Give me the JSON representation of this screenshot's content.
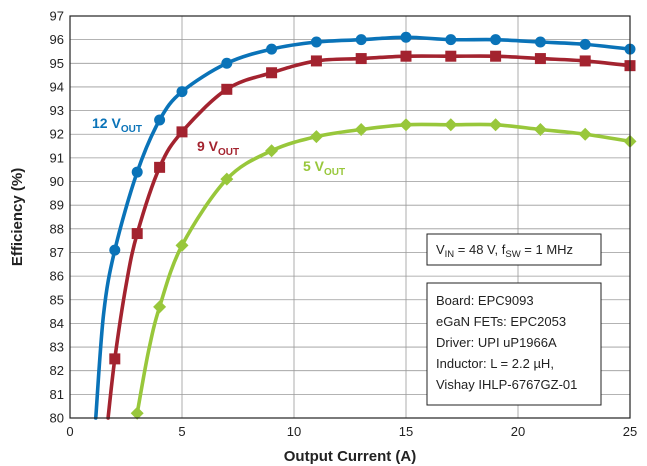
{
  "chart_data": {
    "type": "line",
    "xlabel": "Output Current (A)",
    "ylabel": "Efficiency (%)",
    "xlim": [
      0,
      25
    ],
    "ylim": [
      80,
      97
    ],
    "xticks": [
      0,
      5,
      10,
      15,
      20,
      25
    ],
    "yticks": [
      80,
      81,
      82,
      83,
      84,
      85,
      86,
      87,
      88,
      89,
      90,
      91,
      92,
      93,
      94,
      95,
      96,
      97
    ],
    "grid": true,
    "series": [
      {
        "name": "12 V",
        "name_sub": "OUT",
        "color": "#0a73b8",
        "marker": "circle",
        "markers": [
          [
            2,
            87.1
          ],
          [
            3,
            90.4
          ],
          [
            4,
            92.6
          ],
          [
            5,
            93.8
          ],
          [
            7,
            95.0
          ],
          [
            9,
            95.6
          ],
          [
            11,
            95.9
          ],
          [
            13,
            96.0
          ],
          [
            15,
            96.1
          ],
          [
            17,
            96.0
          ],
          [
            19,
            96.0
          ],
          [
            21,
            95.9
          ],
          [
            23,
            95.8
          ],
          [
            25,
            95.6
          ]
        ],
        "curve": [
          [
            1.15,
            80.0
          ],
          [
            1.5,
            84.4
          ],
          [
            2,
            87.1
          ],
          [
            3,
            90.4
          ],
          [
            4,
            92.6
          ],
          [
            5,
            93.8
          ],
          [
            7,
            95.0
          ],
          [
            9,
            95.6
          ],
          [
            11,
            95.9
          ],
          [
            13,
            96.0
          ],
          [
            15,
            96.1
          ],
          [
            17,
            96.0
          ],
          [
            19,
            96.0
          ],
          [
            21,
            95.9
          ],
          [
            23,
            95.8
          ],
          [
            25,
            95.6
          ]
        ]
      },
      {
        "name": "9 V",
        "name_sub": "OUT",
        "color": "#a3232f",
        "marker": "square",
        "markers": [
          [
            2,
            82.5
          ],
          [
            3,
            87.8
          ],
          [
            4,
            90.6
          ],
          [
            5,
            92.1
          ],
          [
            7,
            93.9
          ],
          [
            9,
            94.6
          ],
          [
            11,
            95.1
          ],
          [
            13,
            95.2
          ],
          [
            15,
            95.3
          ],
          [
            17,
            95.3
          ],
          [
            19,
            95.3
          ],
          [
            21,
            95.2
          ],
          [
            23,
            95.1
          ],
          [
            25,
            94.9
          ]
        ],
        "curve": [
          [
            1.7,
            80.0
          ],
          [
            2,
            82.5
          ],
          [
            2.5,
            85.6
          ],
          [
            3,
            87.8
          ],
          [
            4,
            90.6
          ],
          [
            5,
            92.1
          ],
          [
            7,
            93.9
          ],
          [
            9,
            94.6
          ],
          [
            11,
            95.1
          ],
          [
            13,
            95.2
          ],
          [
            15,
            95.3
          ],
          [
            17,
            95.3
          ],
          [
            19,
            95.3
          ],
          [
            21,
            95.2
          ],
          [
            23,
            95.1
          ],
          [
            25,
            94.9
          ]
        ]
      },
      {
        "name": "5 V",
        "name_sub": "OUT",
        "color": "#98c73b",
        "marker": "diamond",
        "markers": [
          [
            3,
            80.2
          ],
          [
            4,
            84.7
          ],
          [
            5,
            87.3
          ],
          [
            7,
            90.1
          ],
          [
            9,
            91.3
          ],
          [
            11,
            91.9
          ],
          [
            13,
            92.2
          ],
          [
            15,
            92.4
          ],
          [
            17,
            92.4
          ],
          [
            19,
            92.4
          ],
          [
            21,
            92.2
          ],
          [
            23,
            92.0
          ],
          [
            25,
            91.7
          ]
        ],
        "curve": [
          [
            3,
            80.2
          ],
          [
            3.5,
            82.8
          ],
          [
            4,
            84.7
          ],
          [
            5,
            87.3
          ],
          [
            7,
            90.1
          ],
          [
            9,
            91.3
          ],
          [
            11,
            91.9
          ],
          [
            13,
            92.2
          ],
          [
            15,
            92.4
          ],
          [
            17,
            92.4
          ],
          [
            19,
            92.4
          ],
          [
            21,
            92.2
          ],
          [
            23,
            92.0
          ],
          [
            25,
            91.7
          ]
        ]
      }
    ],
    "condition_box": {
      "parts": [
        {
          "t": "V",
          "sub": false
        },
        {
          "t": "IN",
          "sub": true
        },
        {
          "t": " = 48 V, f",
          "sub": false
        },
        {
          "t": "SW",
          "sub": true
        },
        {
          "t": " = 1 MHz",
          "sub": false
        }
      ]
    },
    "info_box": {
      "lines": [
        "Board: EPC9093",
        "eGaN FETs: EPC2053",
        "Driver: UPI uP1966A",
        "Inductor: L = 2.2 µH,",
        "Vishay IHLP-6767GZ-01"
      ]
    }
  }
}
